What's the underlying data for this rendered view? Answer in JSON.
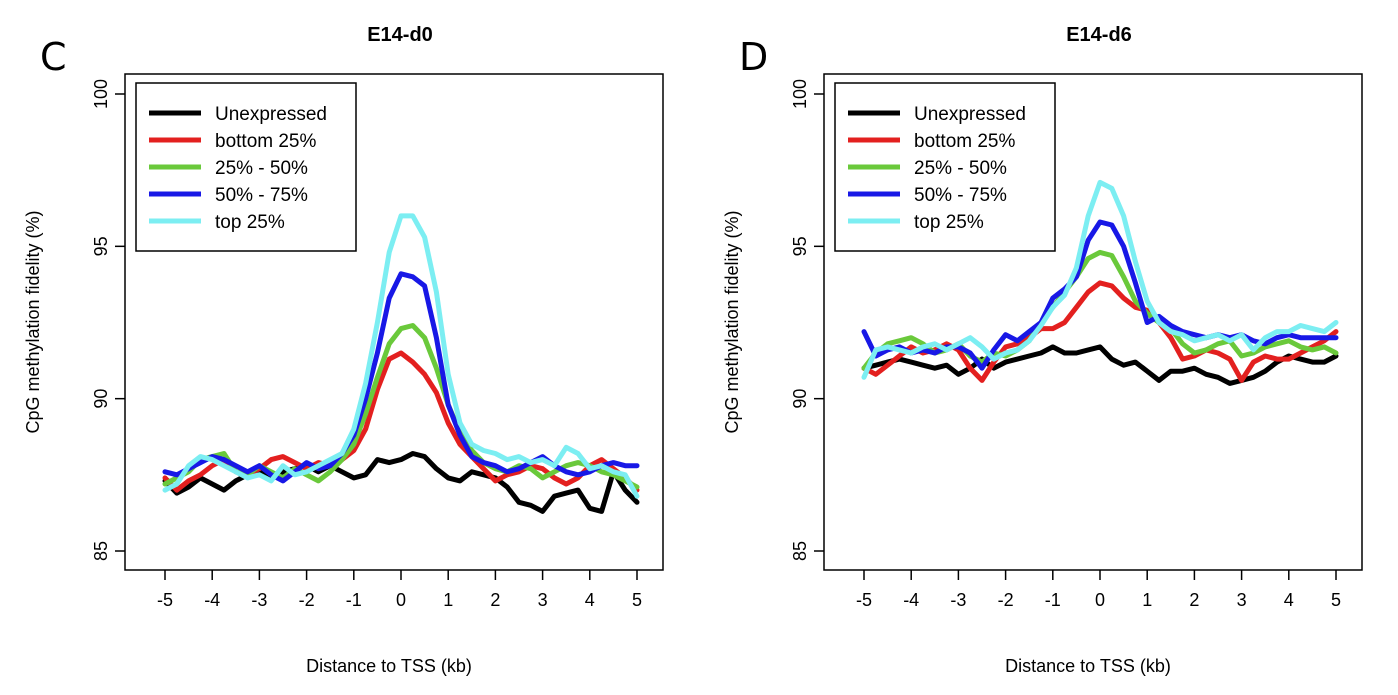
{
  "chart_data": [
    {
      "type": "line",
      "panel_label": "C",
      "title": "E14-d0",
      "xlabel": "Distance to TSS (kb)",
      "ylabel": "CpG methylation fidelity (%)",
      "xlim": [
        -5,
        5
      ],
      "ylim": [
        85,
        100
      ],
      "x_ticks": [
        -5,
        -4,
        -3,
        -2,
        -1,
        0,
        1,
        2,
        3,
        4,
        5
      ],
      "y_ticks": [
        85,
        90,
        95,
        100
      ],
      "legend_position": "top-left",
      "grid": false,
      "x": [
        -5,
        -4.75,
        -4.5,
        -4.25,
        -4,
        -3.75,
        -3.5,
        -3.25,
        -3,
        -2.75,
        -2.5,
        -2.25,
        -2,
        -1.75,
        -1.5,
        -1.25,
        -1,
        -0.75,
        -0.5,
        -0.25,
        0,
        0.25,
        0.5,
        0.75,
        1,
        1.25,
        1.5,
        1.75,
        2,
        2.25,
        2.5,
        2.75,
        3,
        3.25,
        3.5,
        3.75,
        4,
        4.25,
        4.5,
        4.75,
        5
      ],
      "series": [
        {
          "name": "Unexpressed",
          "color": "#000000",
          "values": [
            87.3,
            86.9,
            87.1,
            87.4,
            87.2,
            87.0,
            87.3,
            87.5,
            87.6,
            87.4,
            87.6,
            87.7,
            87.8,
            87.6,
            87.8,
            87.6,
            87.4,
            87.5,
            88.0,
            87.9,
            88.0,
            88.2,
            88.1,
            87.7,
            87.4,
            87.3,
            87.6,
            87.5,
            87.4,
            87.1,
            86.6,
            86.5,
            86.3,
            86.8,
            86.9,
            87.0,
            86.4,
            86.3,
            87.6,
            87.0,
            86.6
          ]
        },
        {
          "name": "bottom 25%",
          "color": "#e3201f",
          "values": [
            87.4,
            87.0,
            87.3,
            87.5,
            87.8,
            88.0,
            87.6,
            87.5,
            87.7,
            88.0,
            88.1,
            87.9,
            87.7,
            87.9,
            87.8,
            88.0,
            88.3,
            89.0,
            90.3,
            91.3,
            91.5,
            91.2,
            90.8,
            90.2,
            89.2,
            88.5,
            88.1,
            87.7,
            87.3,
            87.5,
            87.6,
            87.8,
            87.7,
            87.4,
            87.2,
            87.4,
            87.8,
            88.0,
            87.7,
            87.4,
            87.0
          ]
        },
        {
          "name": "25% - 50%",
          "color": "#6ac93b",
          "values": [
            87.2,
            87.4,
            87.6,
            88.0,
            88.1,
            88.2,
            87.6,
            87.5,
            87.8,
            87.6,
            87.4,
            87.7,
            87.5,
            87.3,
            87.6,
            88.0,
            88.5,
            89.5,
            90.7,
            91.8,
            92.3,
            92.4,
            92.0,
            91.0,
            89.8,
            88.9,
            88.3,
            87.9,
            87.7,
            87.6,
            87.8,
            87.7,
            87.4,
            87.6,
            87.8,
            87.9,
            87.8,
            87.6,
            87.5,
            87.3,
            87.1
          ]
        },
        {
          "name": "50% - 75%",
          "color": "#1818e6",
          "values": [
            87.6,
            87.5,
            87.7,
            87.9,
            88.1,
            88.0,
            87.8,
            87.6,
            87.8,
            87.5,
            87.3,
            87.6,
            87.9,
            87.7,
            87.8,
            88.2,
            88.8,
            90.0,
            91.5,
            93.3,
            94.1,
            94.0,
            93.7,
            92.0,
            89.8,
            88.8,
            88.1,
            87.9,
            87.8,
            87.6,
            87.7,
            87.9,
            88.1,
            87.8,
            87.6,
            87.5,
            87.6,
            87.8,
            87.9,
            87.8,
            87.8
          ]
        },
        {
          "name": "top 25%",
          "color": "#7ceef2",
          "values": [
            87.0,
            87.2,
            87.8,
            88.1,
            88.0,
            87.8,
            87.6,
            87.4,
            87.5,
            87.3,
            87.8,
            87.5,
            87.6,
            87.8,
            88.0,
            88.2,
            89.0,
            90.5,
            92.5,
            94.8,
            96.0,
            96.0,
            95.3,
            93.5,
            90.8,
            89.2,
            88.5,
            88.3,
            88.2,
            88.0,
            88.1,
            87.9,
            88.0,
            87.8,
            88.4,
            88.2,
            87.7,
            87.8,
            87.6,
            87.5,
            86.8
          ]
        }
      ]
    },
    {
      "type": "line",
      "panel_label": "D",
      "title": "E14-d6",
      "xlabel": "Distance to TSS (kb)",
      "ylabel": "CpG methylation fidelity (%)",
      "xlim": [
        -5,
        5
      ],
      "ylim": [
        85,
        100
      ],
      "x_ticks": [
        -5,
        -4,
        -3,
        -2,
        -1,
        0,
        1,
        2,
        3,
        4,
        5
      ],
      "y_ticks": [
        85,
        90,
        95,
        100
      ],
      "legend_position": "top-left",
      "grid": false,
      "x": [
        -5,
        -4.75,
        -4.5,
        -4.25,
        -4,
        -3.75,
        -3.5,
        -3.25,
        -3,
        -2.75,
        -2.5,
        -2.25,
        -2,
        -1.75,
        -1.5,
        -1.25,
        -1,
        -0.75,
        -0.5,
        -0.25,
        0,
        0.25,
        0.5,
        0.75,
        1,
        1.25,
        1.5,
        1.75,
        2,
        2.25,
        2.5,
        2.75,
        3,
        3.25,
        3.5,
        3.75,
        4,
        4.25,
        4.5,
        4.75,
        5
      ],
      "series": [
        {
          "name": "Unexpressed",
          "color": "#000000",
          "values": [
            91.0,
            91.1,
            91.2,
            91.3,
            91.2,
            91.1,
            91.0,
            91.1,
            90.8,
            91.0,
            91.3,
            91.0,
            91.2,
            91.3,
            91.4,
            91.5,
            91.7,
            91.5,
            91.5,
            91.6,
            91.7,
            91.3,
            91.1,
            91.2,
            90.9,
            90.6,
            90.9,
            90.9,
            91.0,
            90.8,
            90.7,
            90.5,
            90.6,
            90.7,
            90.9,
            91.2,
            91.4,
            91.3,
            91.2,
            91.2,
            91.4
          ]
        },
        {
          "name": "bottom 25%",
          "color": "#e3201f",
          "values": [
            91.0,
            90.8,
            91.1,
            91.4,
            91.7,
            91.5,
            91.6,
            91.8,
            91.6,
            91.0,
            90.6,
            91.2,
            91.7,
            91.8,
            92.0,
            92.3,
            92.3,
            92.5,
            93.0,
            93.5,
            93.8,
            93.7,
            93.3,
            93.0,
            92.9,
            92.5,
            92.0,
            91.3,
            91.4,
            91.6,
            91.5,
            91.3,
            90.6,
            91.2,
            91.4,
            91.3,
            91.3,
            91.5,
            91.7,
            91.9,
            92.2
          ]
        },
        {
          "name": "25% - 50%",
          "color": "#6ac93b",
          "values": [
            91.0,
            91.5,
            91.8,
            91.9,
            92.0,
            91.8,
            91.5,
            91.6,
            91.8,
            91.4,
            91.2,
            91.5,
            91.4,
            91.6,
            91.9,
            92.5,
            93.0,
            93.5,
            94.0,
            94.6,
            94.8,
            94.7,
            94.0,
            93.2,
            92.8,
            92.5,
            92.3,
            91.8,
            91.5,
            91.6,
            91.8,
            91.9,
            91.4,
            91.5,
            91.7,
            91.8,
            91.9,
            91.7,
            91.6,
            91.7,
            91.5
          ]
        },
        {
          "name": "50% - 75%",
          "color": "#1818e6",
          "values": [
            92.2,
            91.4,
            91.6,
            91.7,
            91.5,
            91.6,
            91.5,
            91.7,
            91.7,
            91.5,
            91.0,
            91.6,
            92.1,
            91.9,
            92.2,
            92.5,
            93.3,
            93.6,
            94.0,
            95.2,
            95.8,
            95.7,
            95.0,
            93.8,
            92.5,
            92.7,
            92.4,
            92.2,
            92.1,
            92.0,
            92.1,
            92.0,
            92.1,
            91.9,
            91.8,
            92.0,
            92.1,
            92.0,
            92.0,
            92.0,
            92.0
          ]
        },
        {
          "name": "top 25%",
          "color": "#7ceef2",
          "values": [
            90.7,
            91.6,
            91.7,
            91.6,
            91.5,
            91.7,
            91.8,
            91.6,
            91.8,
            92.0,
            91.7,
            91.3,
            91.5,
            91.6,
            91.9,
            92.4,
            93.0,
            93.4,
            94.3,
            96.0,
            97.1,
            96.9,
            96.0,
            94.5,
            93.2,
            92.5,
            92.2,
            92.1,
            91.9,
            92.0,
            92.1,
            91.9,
            92.1,
            91.6,
            92.0,
            92.2,
            92.2,
            92.4,
            92.3,
            92.2,
            92.5
          ]
        }
      ]
    }
  ]
}
